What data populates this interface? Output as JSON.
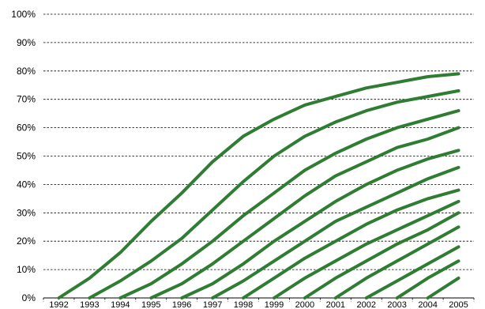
{
  "chart_data": {
    "type": "line",
    "title": "",
    "xlabel": "",
    "ylabel": "",
    "x": [
      "1992",
      "1993",
      "1994",
      "1995",
      "1996",
      "1997",
      "1998",
      "1999",
      "2000",
      "2001",
      "2002",
      "2003",
      "2004",
      "2005"
    ],
    "y_ticks": [
      "0%",
      "10%",
      "20%",
      "30%",
      "40%",
      "50%",
      "60%",
      "70%",
      "80%",
      "90%",
      "100%"
    ],
    "ylim": [
      0,
      100
    ],
    "grid": true,
    "legend": "none",
    "line_color": "#2e7d32",
    "series": [
      {
        "values": [
          0,
          7,
          16,
          27,
          37,
          48,
          57,
          63,
          68,
          71,
          74,
          76,
          78,
          79
        ]
      },
      {
        "values": [
          null,
          0,
          6,
          13,
          21,
          31,
          41,
          50,
          57,
          62,
          66,
          69,
          71,
          73
        ]
      },
      {
        "values": [
          null,
          null,
          0,
          5,
          12,
          20,
          29,
          37,
          45,
          51,
          56,
          60,
          63,
          66
        ]
      },
      {
        "values": [
          null,
          null,
          null,
          0,
          5,
          12,
          20,
          28,
          36,
          43,
          48,
          53,
          56,
          60
        ]
      },
      {
        "values": [
          null,
          null,
          null,
          null,
          0,
          5,
          12,
          20,
          27,
          34,
          40,
          45,
          49,
          52
        ]
      },
      {
        "values": [
          null,
          null,
          null,
          null,
          null,
          0,
          6,
          13,
          20,
          27,
          32,
          37,
          42,
          46
        ]
      },
      {
        "values": [
          null,
          null,
          null,
          null,
          null,
          null,
          0,
          7,
          14,
          20,
          26,
          31,
          35,
          38
        ]
      },
      {
        "values": [
          null,
          null,
          null,
          null,
          null,
          null,
          null,
          0,
          7,
          13,
          19,
          24,
          29,
          34
        ]
      },
      {
        "values": [
          null,
          null,
          null,
          null,
          null,
          null,
          null,
          null,
          0,
          7,
          13,
          19,
          24,
          30
        ]
      },
      {
        "values": [
          null,
          null,
          null,
          null,
          null,
          null,
          null,
          null,
          null,
          0,
          7,
          13,
          19,
          25
        ]
      },
      {
        "values": [
          null,
          null,
          null,
          null,
          null,
          null,
          null,
          null,
          null,
          null,
          0,
          6,
          12,
          18
        ]
      },
      {
        "values": [
          null,
          null,
          null,
          null,
          null,
          null,
          null,
          null,
          null,
          null,
          null,
          0,
          7,
          13
        ]
      },
      {
        "values": [
          null,
          null,
          null,
          null,
          null,
          null,
          null,
          null,
          null,
          null,
          null,
          null,
          0,
          7
        ]
      }
    ]
  }
}
